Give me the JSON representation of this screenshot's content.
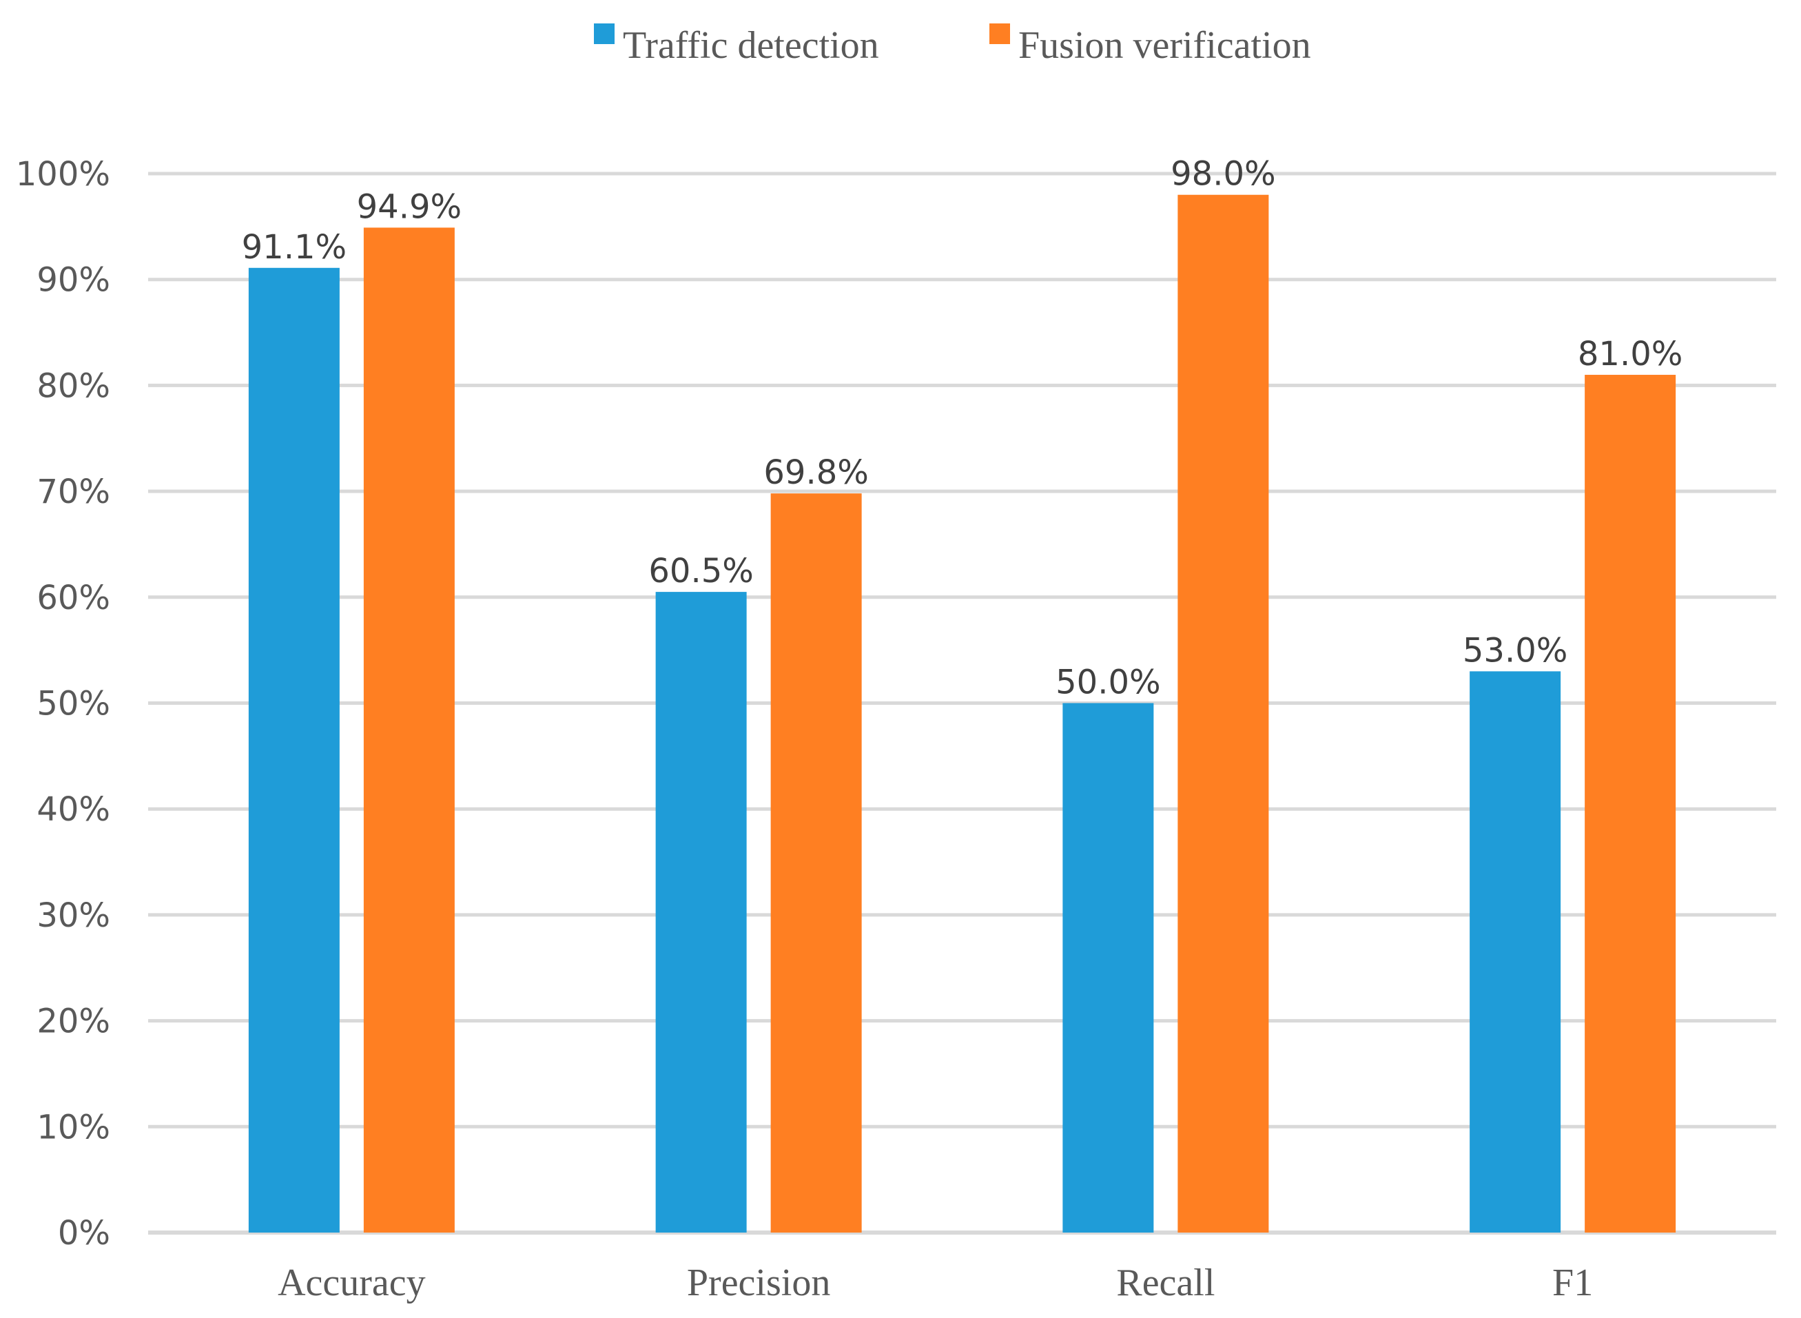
{
  "chart_data": {
    "type": "bar",
    "title": "",
    "xlabel": "",
    "ylabel": "",
    "categories": [
      "Accuracy",
      "Precision",
      "Recall",
      "F1"
    ],
    "series": [
      {
        "name": "Traffic detection",
        "color": "#1f9cd8",
        "values": [
          91.1,
          60.5,
          50.0,
          53.0
        ],
        "labels": [
          "91.1%",
          "60.5%",
          "50.0%",
          "53.0%"
        ]
      },
      {
        "name": "Fusion verification",
        "color": "#ff7f22",
        "values": [
          94.9,
          69.8,
          98.0,
          81.0
        ],
        "labels": [
          "94.9%",
          "69.8%",
          "98.0%",
          "81.0%"
        ]
      }
    ],
    "ylim": [
      0,
      100
    ],
    "yticks": [
      0,
      10,
      20,
      30,
      40,
      50,
      60,
      70,
      80,
      90,
      100
    ],
    "ytick_labels": [
      "0%",
      "10%",
      "20%",
      "30%",
      "40%",
      "50%",
      "60%",
      "70%",
      "80%",
      "90%",
      "100%"
    ],
    "grid": true,
    "legend_position": "top-center"
  }
}
